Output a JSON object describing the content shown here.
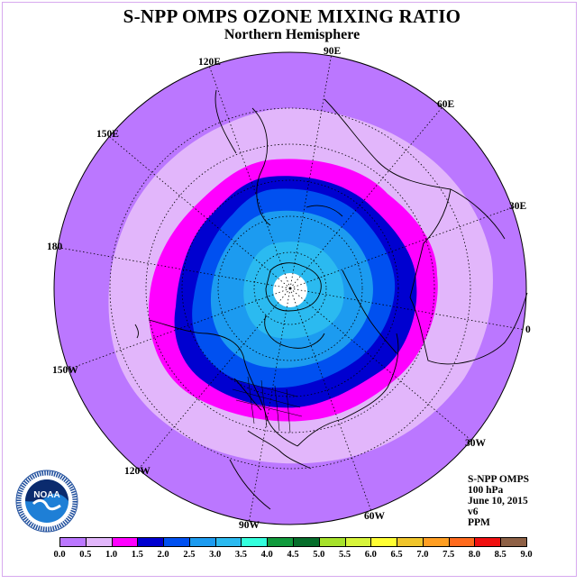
{
  "title": "S-NPP OMPS OZONE MIXING RATIO",
  "subtitle": "Northern Hemisphere",
  "longitude_labels": [
    "90E",
    "60E",
    "30E",
    "0",
    "30W",
    "60W",
    "90W",
    "120W",
    "150W",
    "180",
    "150E",
    "120E"
  ],
  "info_block": [
    "S-NPP OMPS",
    "100 hPa",
    "June 10, 2015",
    "v6",
    "PPM"
  ],
  "colorbar": {
    "ticks": [
      "0.0",
      "0.5",
      "1.0",
      "1.5",
      "2.0",
      "2.5",
      "3.0",
      "3.5",
      "4.0",
      "4.5",
      "5.0",
      "5.5",
      "6.0",
      "6.5",
      "7.0",
      "7.5",
      "8.0",
      "8.5",
      "9.0"
    ],
    "colors": [
      "#bb77ff",
      "#e2b6fb",
      "#ff00ff",
      "#0000d0",
      "#0050f0",
      "#1c9bf0",
      "#2bbaf0",
      "#33ffdd",
      "#109a3c",
      "#066e2b",
      "#a6e22b",
      "#d8f53b",
      "#ffff33",
      "#f0c52b",
      "#ff9e22",
      "#ff6a1d",
      "#f01010",
      "#8e6045"
    ]
  },
  "map_colors": {
    "level_0_0.5": "#bb77ff",
    "level_0.5_1.0": "#e2b6fb",
    "level_1.0_1.5": "#ff00ff",
    "level_1.5_2.0": "#0000d0",
    "level_2.0_2.5": "#0050f0",
    "level_2.5_3.0": "#1c9bf0",
    "level_3.0_3.5": "#2bbaf0",
    "missing": "#ffffff"
  },
  "logo_text": {
    "acronym": "NOAA"
  }
}
